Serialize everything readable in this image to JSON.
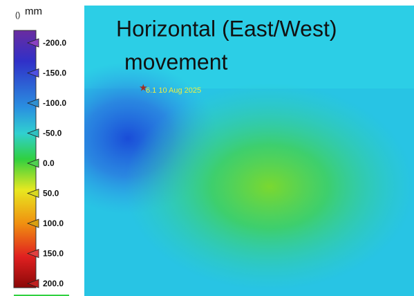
{
  "legend": {
    "unit_left": "()",
    "unit": "mm",
    "ticks": [
      {
        "value": -200,
        "label": "-200.0"
      },
      {
        "value": -150,
        "label": "-150.0"
      },
      {
        "value": -100,
        "label": "-100.0"
      },
      {
        "value": -50,
        "label": "-50.0"
      },
      {
        "value": 0,
        "label": "0.0"
      },
      {
        "value": 50,
        "label": "50.0"
      },
      {
        "value": 100,
        "label": "100.0"
      },
      {
        "value": 150,
        "label": "150.0"
      },
      {
        "value": 200,
        "label": "200.0"
      }
    ],
    "range": [
      -200,
      200
    ]
  },
  "map": {
    "title": "Horizontal (East/West)",
    "title_line2": "movement",
    "event": "6.1 10 Aug 2025"
  }
}
